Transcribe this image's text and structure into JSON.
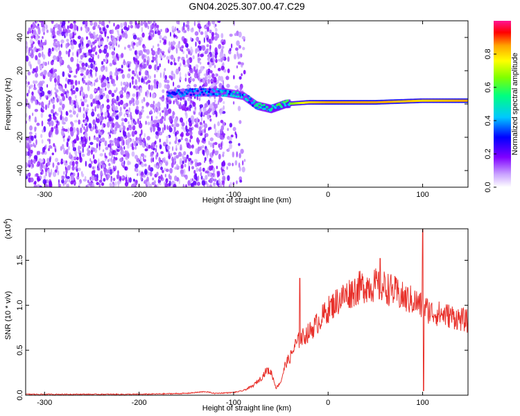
{
  "chart_data": [
    {
      "type": "heatmap",
      "title": "GN04.2025.307.00.47.C29",
      "xlabel": "Height of straight line (km)",
      "ylabel": "Frequency (Hz)",
      "xlim": [
        -320,
        148
      ],
      "ylim": [
        -50,
        50
      ],
      "x_ticks": [
        -300,
        -200,
        -100,
        0,
        100
      ],
      "y_ticks": [
        -40,
        -20,
        0,
        20,
        40
      ],
      "colorbar": {
        "label": "Normalized spectral amplitude",
        "range": [
          0,
          1
        ],
        "ticks": [
          "0.0",
          "0.2",
          "0.4",
          "0.6",
          "0.8"
        ],
        "colors": [
          "#ff1493",
          "#ff0000",
          "#ffa500",
          "#ffff00",
          "#00ff00",
          "#00ffff",
          "#0000ff",
          "#8000ff",
          "#ffffff"
        ]
      },
      "ridge": {
        "description_points": [
          {
            "x": -170,
            "y": 6,
            "amp": 0.35
          },
          {
            "x": -140,
            "y": 7,
            "amp": 0.4
          },
          {
            "x": -110,
            "y": 7,
            "amp": 0.45
          },
          {
            "x": -90,
            "y": 5,
            "amp": 0.45
          },
          {
            "x": -75,
            "y": -1,
            "amp": 0.5
          },
          {
            "x": -60,
            "y": -3,
            "amp": 0.55
          },
          {
            "x": -45,
            "y": 0,
            "amp": 0.6
          },
          {
            "x": -20,
            "y": 1,
            "amp": 0.8
          },
          {
            "x": 0,
            "y": 1,
            "amp": 0.85
          },
          {
            "x": 50,
            "y": 1,
            "amp": 0.85
          },
          {
            "x": 100,
            "y": 2,
            "amp": 0.8
          },
          {
            "x": 148,
            "y": 2,
            "amp": 0.85
          }
        ]
      },
      "noise_extent_x": [
        -320,
        -100
      ]
    },
    {
      "type": "line",
      "xlabel": "Height of straight line (km)",
      "ylabel": "SNR (10 * v/v)",
      "multiplier": "(x10^4)",
      "xlim": [
        -320,
        148
      ],
      "ylim": [
        0,
        1.85
      ],
      "x_ticks": [
        -300,
        -200,
        -100,
        0,
        100
      ],
      "y_ticks": [
        "0.0",
        "0.5",
        "1.0",
        "1.5"
      ],
      "color": "#e8302a",
      "series": [
        {
          "x": [
            -320,
            -250,
            -200,
            -150,
            -130,
            -120,
            -100,
            -90,
            -80,
            -70,
            -65,
            -60,
            -55,
            -50,
            -45,
            -40,
            -35,
            -30,
            -20,
            -10,
            0,
            10,
            20,
            30,
            40,
            50,
            60,
            70,
            80,
            90,
            95,
            100,
            105,
            110,
            120,
            130,
            148
          ],
          "y": [
            0.01,
            0.01,
            0.01,
            0.02,
            0.04,
            0.02,
            0.03,
            0.05,
            0.1,
            0.2,
            0.28,
            0.25,
            0.08,
            0.15,
            0.35,
            0.42,
            0.55,
            0.62,
            0.7,
            0.82,
            0.95,
            1.05,
            1.12,
            1.18,
            1.22,
            1.22,
            1.2,
            1.15,
            1.08,
            1.05,
            1.02,
            0.98,
            0.95,
            0.92,
            0.9,
            0.88,
            0.82
          ]
        }
      ],
      "spikes": [
        {
          "x": -30,
          "y": 1.3
        },
        {
          "x": 55,
          "y": 1.52
        },
        {
          "x": 100,
          "y": 1.85
        },
        {
          "x": 101,
          "y": 0.05
        }
      ]
    }
  ]
}
